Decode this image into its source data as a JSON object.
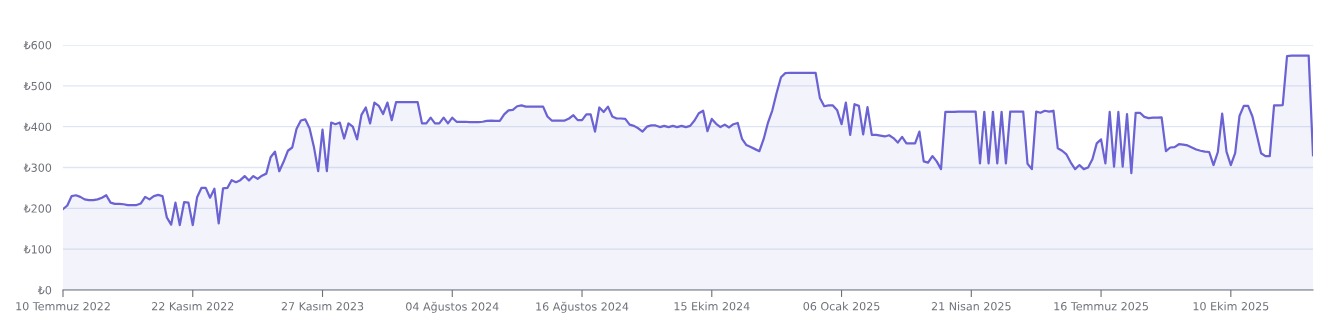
{
  "chart_data": {
    "type": "area",
    "categories": [
      "10 Temmuz 2022",
      null,
      null,
      null,
      null,
      null,
      null,
      null,
      null,
      null,
      null,
      null,
      null,
      null,
      null,
      null,
      null,
      null,
      null,
      null,
      null,
      null,
      null,
      null,
      null,
      null,
      null,
      null,
      null,
      null,
      "22 Kasım 2022",
      null,
      null,
      null,
      null,
      null,
      null,
      null,
      null,
      null,
      null,
      null,
      null,
      null,
      null,
      null,
      null,
      null,
      null,
      null,
      null,
      null,
      null,
      null,
      null,
      null,
      null,
      null,
      null,
      null,
      "27 Kasım 2023",
      null,
      null,
      null,
      null,
      null,
      null,
      null,
      null,
      null,
      null,
      null,
      null,
      null,
      null,
      null,
      null,
      null,
      null,
      null,
      null,
      null,
      null,
      null,
      null,
      null,
      null,
      null,
      null,
      null,
      "04 Ağustos 2024",
      null,
      null,
      null,
      null,
      null,
      null,
      null,
      null,
      null,
      null,
      null,
      null,
      null,
      null,
      null,
      null,
      null,
      null,
      null,
      null,
      null,
      null,
      null,
      null,
      null,
      null,
      null,
      null,
      null,
      "16 Ağustos 2024",
      null,
      null,
      null,
      null,
      null,
      null,
      null,
      null,
      null,
      null,
      null,
      null,
      null,
      null,
      null,
      null,
      null,
      null,
      null,
      null,
      null,
      null,
      null,
      null,
      null,
      null,
      null,
      null,
      null,
      "15 Ekim 2024",
      null,
      null,
      null,
      null,
      null,
      null,
      null,
      null,
      null,
      null,
      null,
      null,
      null,
      null,
      null,
      null,
      null,
      null,
      null,
      null,
      null,
      null,
      null,
      null,
      null,
      null,
      null,
      null,
      null,
      "06 Ocak 2025",
      null,
      null,
      null,
      null,
      null,
      null,
      null,
      null,
      null,
      null,
      null,
      null,
      null,
      null,
      null,
      null,
      null,
      null,
      null,
      null,
      null,
      null,
      null,
      null,
      null,
      null,
      null,
      null,
      null,
      "21 Nisan 2025",
      null,
      null,
      null,
      null,
      null,
      null,
      null,
      null,
      null,
      null,
      null,
      null,
      null,
      null,
      null,
      null,
      null,
      null,
      null,
      null,
      null,
      null,
      null,
      null,
      null,
      null,
      null,
      null,
      null,
      "16 Temmuz 2025",
      null,
      null,
      null,
      null,
      null,
      null,
      null,
      null,
      null,
      null,
      null,
      null,
      null,
      null,
      null,
      null,
      null,
      null,
      null,
      null,
      null,
      null,
      null,
      null,
      null,
      null,
      null,
      null,
      null,
      "10 Ekim 2025",
      null,
      null,
      null,
      null,
      null,
      null,
      null,
      null,
      null,
      null,
      null,
      null,
      null,
      null,
      null,
      null,
      null,
      null,
      null
    ],
    "series": [
      {
        "color": "#6b62d3",
        "values": [
          198,
          207,
          230,
          232,
          228,
          222,
          220,
          220,
          222,
          226,
          232,
          214,
          211,
          211,
          210,
          208,
          208,
          208,
          212,
          228,
          222,
          230,
          233,
          230,
          178,
          160,
          214,
          159,
          215,
          214,
          159,
          227,
          250,
          250,
          226,
          248,
          163,
          249,
          250,
          269,
          264,
          269,
          279,
          268,
          279,
          272,
          280,
          285,
          325,
          339,
          291,
          314,
          341,
          349,
          395,
          415,
          418,
          396,
          351,
          291,
          393,
          291,
          410,
          406,
          410,
          371,
          408,
          400,
          369,
          429,
          447,
          408,
          459,
          451,
          431,
          459,
          416,
          460,
          460,
          460,
          460,
          460,
          460,
          408,
          408,
          422,
          408,
          408,
          422,
          408,
          422,
          412,
          412,
          412,
          411,
          411,
          411,
          412,
          414,
          415,
          414,
          414,
          430,
          440,
          441,
          450,
          452,
          449,
          449,
          449,
          449,
          449,
          425,
          415,
          415,
          415,
          415,
          420,
          428,
          416,
          416,
          430,
          430,
          388,
          447,
          436,
          449,
          425,
          420,
          420,
          419,
          405,
          402,
          396,
          388,
          400,
          403,
          403,
          399,
          402,
          399,
          402,
          399,
          402,
          399,
          402,
          415,
          433,
          439,
          389,
          419,
          407,
          399,
          405,
          398,
          406,
          409,
          370,
          355,
          350,
          345,
          340,
          370,
          410,
          440,
          483,
          521,
          531,
          532,
          532,
          532,
          532,
          532,
          532,
          532,
          470,
          450,
          452,
          452,
          440,
          406,
          459,
          380,
          455,
          451,
          381,
          448,
          380,
          380,
          378,
          376,
          379,
          372,
          361,
          375,
          359,
          359,
          359,
          388,
          315,
          312,
          328,
          315,
          296,
          436,
          436,
          436,
          437,
          437,
          437,
          437,
          437,
          310,
          436,
          310,
          436,
          310,
          436,
          310,
          437,
          437,
          437,
          437,
          309,
          296,
          437,
          434,
          439,
          437,
          439,
          347,
          341,
          332,
          312,
          296,
          306,
          296,
          300,
          320,
          359,
          369,
          310,
          436,
          302,
          436,
          302,
          431,
          286,
          434,
          434,
          424,
          421,
          422,
          422,
          423,
          340,
          349,
          350,
          357,
          356,
          354,
          349,
          344,
          341,
          339,
          338,
          306,
          338,
          432,
          339,
          306,
          335,
          426,
          451,
          451,
          425,
          380,
          335,
          328,
          328,
          452,
          452,
          453,
          573,
          574,
          574,
          574,
          574,
          574,
          330
        ]
      }
    ],
    "ylim": [
      0,
      600
    ],
    "yticks": [
      {
        "value": 0,
        "label": "₺0"
      },
      {
        "value": 100,
        "label": "₺100"
      },
      {
        "value": 200,
        "label": "₺200"
      },
      {
        "value": 300,
        "label": "₺300"
      },
      {
        "value": 400,
        "label": "₺400"
      },
      {
        "value": 500,
        "label": "₺500"
      },
      {
        "value": 600,
        "label": "₺600"
      }
    ],
    "grid": "y"
  }
}
